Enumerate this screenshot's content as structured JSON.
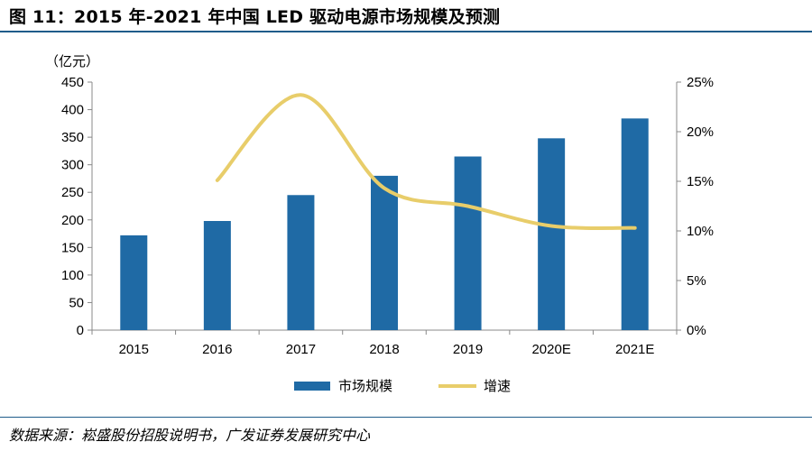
{
  "header": {
    "title": "图 11：2015 年-2021 年中国 LED 驱动电源市场规模及预测"
  },
  "footer": {
    "source": "数据来源：崧盛股份招股说明书，广发证券发展研究中心"
  },
  "colors": {
    "bar": "#1f6aa5",
    "line": "#e8cd6a",
    "axis": "#888888",
    "accent_rule": "#1f5c8a"
  },
  "chart_data": {
    "type": "bar",
    "categories": [
      "2015",
      "2016",
      "2017",
      "2018",
      "2019",
      "2020E",
      "2021E"
    ],
    "unit_label": "（亿元）",
    "series": [
      {
        "name": "市场规模",
        "type": "bar",
        "axis": "left",
        "values": [
          172,
          198,
          245,
          280,
          315,
          348,
          384
        ]
      },
      {
        "name": "增速",
        "type": "line",
        "axis": "right",
        "values": [
          null,
          0.151,
          0.237,
          0.143,
          0.125,
          0.105,
          0.103
        ]
      }
    ],
    "y_left": {
      "min": 0,
      "max": 450,
      "step": 50,
      "ticks": [
        "0",
        "50",
        "100",
        "150",
        "200",
        "250",
        "300",
        "350",
        "400",
        "450"
      ]
    },
    "y_right": {
      "min": 0,
      "max": 0.25,
      "step": 0.05,
      "ticks": [
        "0%",
        "5%",
        "10%",
        "15%",
        "20%",
        "25%"
      ]
    },
    "grid": false,
    "legend_position": "bottom"
  }
}
